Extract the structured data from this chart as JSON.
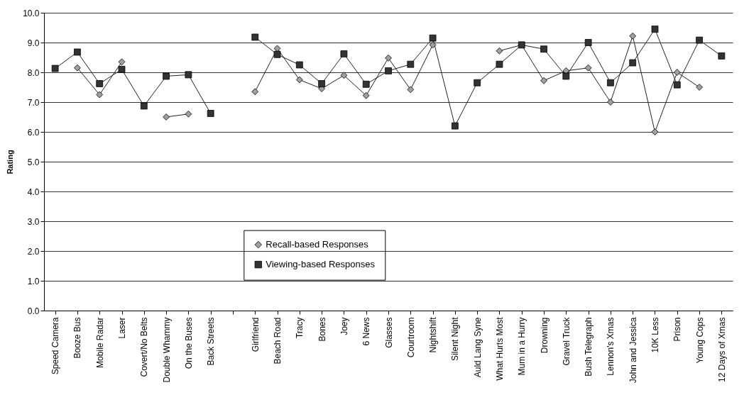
{
  "chart_data": {
    "type": "line",
    "ylabel": "Rating",
    "categories": [
      "Speed Camera",
      "Booze Bus",
      "Mobile Radar",
      "Laser",
      "Covert/No Belts",
      "Double Whammy",
      "On the Buses",
      "Back Streets",
      null,
      "Girlfriend",
      "Beach Road",
      "Tracy",
      "Bones",
      "Joey",
      "6 News",
      "Glasses",
      "Courtroom",
      "Nightshift",
      "Silent Night",
      "Auld Lang Syne",
      "What Hurts Most",
      "Mum in a Hurry",
      "Drowning",
      "Gravel Truck",
      "Bush Telegraph",
      "Lennon's Xmas",
      "John and Jessica",
      "10K Less",
      "Prison",
      "Young Cops",
      "12 Days of Xmas"
    ],
    "series": [
      {
        "name": "Recall-based Responses",
        "color": "#a0a0a0",
        "marker": "diamond",
        "values": [
          null,
          8.15,
          7.25,
          8.35,
          null,
          6.5,
          6.6,
          null,
          null,
          7.35,
          8.8,
          7.75,
          7.45,
          7.9,
          7.22,
          8.48,
          7.42,
          8.92,
          null,
          null,
          8.72,
          8.92,
          7.72,
          8.05,
          8.15,
          7.0,
          9.22,
          6.0,
          8.0,
          7.5,
          null
        ]
      },
      {
        "name": "Viewing-based Responses",
        "color": "#333333",
        "marker": "square",
        "values": [
          8.13,
          8.68,
          7.62,
          8.1,
          6.87,
          7.87,
          7.92,
          6.62,
          null,
          9.18,
          8.6,
          8.25,
          7.62,
          8.62,
          7.6,
          8.05,
          8.27,
          9.15,
          6.2,
          7.65,
          8.27,
          8.92,
          8.78,
          7.87,
          9.0,
          7.65,
          8.32,
          9.45,
          7.58,
          9.08,
          8.55
        ]
      }
    ],
    "ylim": [
      0,
      10
    ],
    "yticks": [
      {
        "value": 0,
        "label": "0.0"
      },
      {
        "value": 1,
        "label": "1.0"
      },
      {
        "value": 2,
        "label": "2.0"
      },
      {
        "value": 3,
        "label": "3.0"
      },
      {
        "value": 4,
        "label": "4.0"
      },
      {
        "value": 5,
        "label": "5.0"
      },
      {
        "value": 6,
        "label": "6.0"
      },
      {
        "value": 7,
        "label": "7.0"
      },
      {
        "value": 8,
        "label": "8.0"
      },
      {
        "value": 9,
        "label": "9.0"
      },
      {
        "value": 10,
        "label": "10.0"
      }
    ],
    "grid": "y",
    "legend": "bottom",
    "line_style": "solid"
  }
}
